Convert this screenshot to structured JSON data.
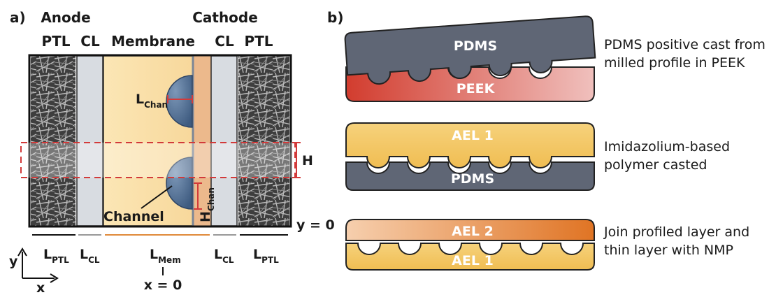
{
  "panel_a": {
    "tag": "a)",
    "anode": "Anode",
    "cathode": "Cathode",
    "ptl_left": "PTL",
    "cl_left": "CL",
    "membrane": "Membrane",
    "cl_right": "CL",
    "ptl_right": "PTL",
    "l_chan_main": "L",
    "l_chan_sub": "Chan",
    "h_chan_main": "H",
    "h_chan_sub": "Chan",
    "channel": "Channel",
    "h_label": "H",
    "y0": "y = 0",
    "x0": "x = 0",
    "l_main": "L",
    "l_ptl_sub": "PTL",
    "l_cl_sub": "CL",
    "l_mem_sub": "Mem",
    "axis_y": "y",
    "axis_x": "x"
  },
  "panel_b": {
    "tag": "b)",
    "pdms_top": "PDMS",
    "peek": "PEEK",
    "cap1_line1": "PDMS positive cast from",
    "cap1_line2": "milled profile in PEEK",
    "ael1_mid": "AEL 1",
    "pdms_mid": "PDMS",
    "cap2_line1": "Imidazolium-based",
    "cap2_line2": "polymer casted",
    "ael2": "AEL 2",
    "ael1_bot": "AEL 1",
    "cap3_line1": "Join profiled layer and",
    "cap3_line2": "thin layer with NMP"
  },
  "colors": {
    "ptl": "#4a4a4a",
    "cl": "#d7dbe0",
    "membrane": "#fbe3ad",
    "channel": "#4f6d92",
    "cathode_strip": "#ecb98c",
    "dashed": "#d23a3a",
    "pdms": "#5f6675",
    "peek": "#d23c2e",
    "ael": "#f4c766",
    "ael2": "#e27b2b"
  }
}
